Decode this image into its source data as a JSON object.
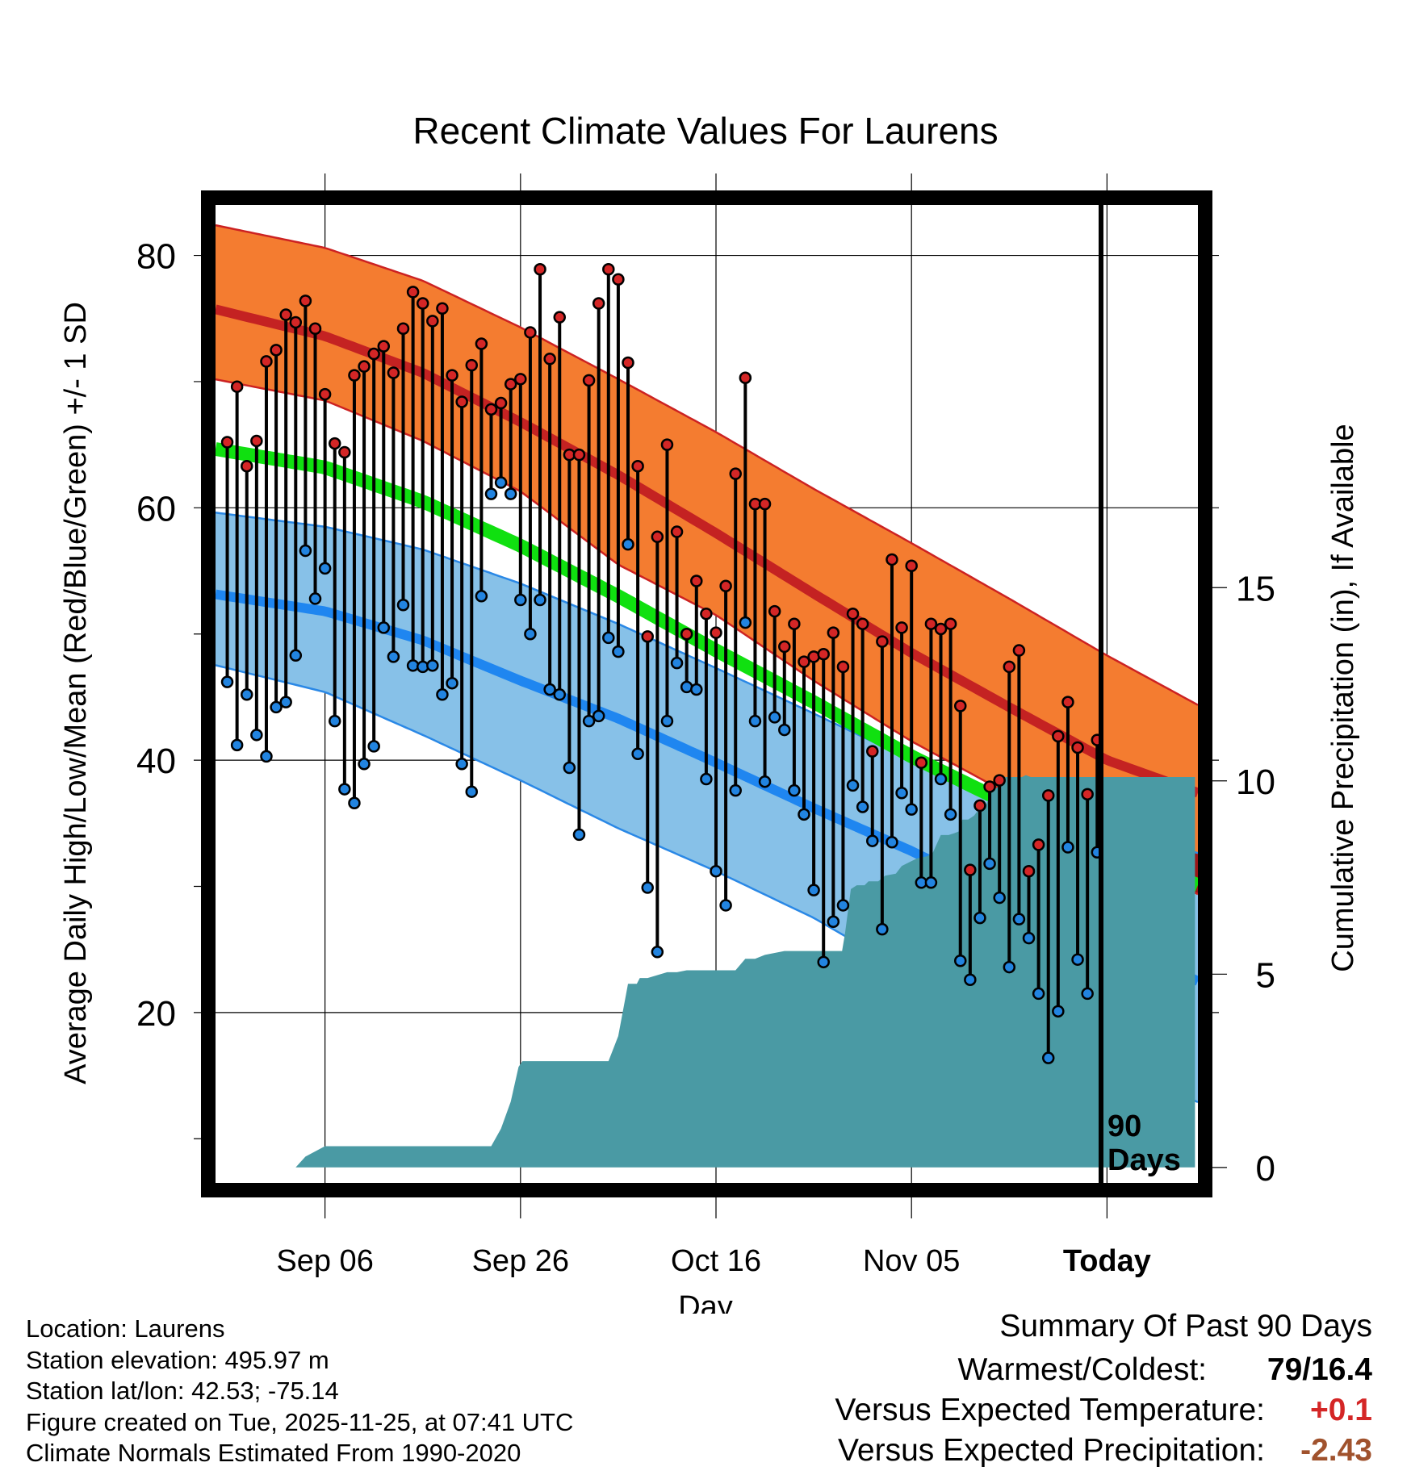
{
  "chart_data": {
    "type": "line",
    "title": "Recent Climate Values For Laurens",
    "xlabel": "Day",
    "ylabel": "Average Daily High/Low/Mean (Red/Blue/Green) +/- 1 SD",
    "y2label": "Cumulative Precipitation (in), If Available",
    "ylim": [
      6.5,
      84
    ],
    "y2lim": [
      -0.4,
      24.9
    ],
    "xlim": [
      -11.2,
      89.3
    ],
    "x_axis_note": "x = days since Sep 06",
    "yticks": [
      20,
      40,
      60,
      80
    ],
    "y2ticks": [
      0,
      5,
      10,
      15
    ],
    "xtick_labels": [
      {
        "label": "Sep 06",
        "x": 0
      },
      {
        "label": "Sep 26",
        "x": 20
      },
      {
        "label": "Oct 16",
        "x": 40
      },
      {
        "label": "Nov 05",
        "x": 60
      },
      {
        "label": "Today",
        "x": 80
      }
    ],
    "window_label": "90 Days",
    "normals": {
      "x": [
        -10,
        0,
        10,
        20,
        30,
        40,
        50,
        60,
        70,
        80,
        89
      ],
      "high_mean": [
        75.5,
        73.6,
        70.7,
        66.8,
        62.6,
        58.0,
        53.2,
        48.5,
        44.2,
        40.0,
        37.5
      ],
      "high_upper": [
        82.2,
        80.6,
        78.0,
        74.3,
        70.2,
        66.0,
        61.5,
        57.2,
        52.8,
        48.3,
        44.5
      ],
      "high_lower": [
        70.0,
        68.5,
        65.3,
        61.3,
        55.5,
        51.5,
        46.3,
        41.5,
        37.3,
        33.0,
        29.5
      ],
      "mean": [
        64.5,
        63.2,
        60.5,
        57.0,
        53.0,
        48.7,
        44.6,
        40.3,
        36.5,
        33.0,
        30.2
      ],
      "low_mean": [
        53.0,
        51.8,
        49.5,
        46.3,
        43.3,
        39.8,
        36.2,
        32.8,
        29.0,
        25.8,
        22.6
      ],
      "low_upper": [
        59.5,
        58.5,
        56.7,
        54.0,
        50.8,
        47.3,
        43.7,
        40.0,
        37.0,
        34.5,
        32.7
      ],
      "low_lower": [
        47.3,
        45.4,
        42.0,
        38.4,
        34.6,
        31.2,
        27.5,
        23.0,
        19.5,
        16.0,
        13.0
      ]
    },
    "observed": {
      "x": [
        -10,
        -9,
        -8,
        -7,
        -6,
        -5,
        -4,
        -3,
        -2,
        -1,
        0,
        1,
        2,
        3,
        4,
        5,
        6,
        7,
        8,
        9,
        10,
        11,
        12,
        13,
        14,
        15,
        16,
        17,
        18,
        19,
        20,
        21,
        22,
        23,
        24,
        25,
        26,
        27,
        28,
        29,
        30,
        31,
        32,
        33,
        34,
        35,
        36,
        37,
        38,
        39,
        40,
        41,
        42,
        43,
        44,
        45,
        46,
        47,
        48,
        49,
        50,
        51,
        52,
        53,
        54,
        55,
        56,
        57,
        58,
        59,
        60,
        61,
        62,
        63,
        64,
        65,
        66,
        67,
        68,
        69,
        70,
        71,
        72,
        73,
        74,
        75,
        76,
        77,
        78,
        79
      ],
      "high": [
        65.2,
        69.6,
        63.3,
        65.3,
        71.6,
        72.5,
        75.3,
        74.7,
        76.4,
        74.2,
        69.0,
        65.1,
        64.4,
        70.5,
        71.2,
        72.2,
        72.8,
        70.7,
        74.2,
        77.1,
        76.2,
        74.8,
        75.8,
        70.5,
        68.4,
        71.3,
        73.0,
        67.8,
        68.3,
        69.8,
        70.2,
        73.9,
        78.9,
        71.8,
        75.1,
        64.2,
        64.2,
        70.1,
        76.2,
        78.9,
        78.1,
        71.5,
        63.3,
        49.8,
        57.7,
        65.0,
        58.1,
        50.0,
        54.2,
        51.6,
        50.1,
        53.8,
        62.7,
        70.3,
        60.3,
        60.3,
        51.8,
        49.0,
        50.8,
        47.8,
        48.2,
        48.4,
        50.1,
        47.4,
        51.6,
        50.8,
        40.7,
        49.4,
        55.9,
        50.5,
        55.4,
        39.8,
        50.8,
        50.4,
        50.8,
        44.3,
        31.3,
        36.4,
        37.9,
        38.4,
        47.4,
        48.7,
        31.2,
        33.3,
        37.2,
        41.9,
        44.6,
        41.0,
        37.3,
        41.6
      ],
      "low": [
        46.2,
        41.2,
        45.2,
        42.0,
        40.3,
        44.2,
        44.6,
        48.3,
        56.6,
        52.8,
        55.2,
        43.1,
        37.7,
        36.6,
        39.7,
        41.1,
        50.5,
        48.2,
        52.3,
        47.5,
        47.4,
        47.5,
        45.2,
        46.1,
        39.7,
        37.5,
        53.0,
        61.1,
        62.0,
        61.1,
        52.7,
        50.0,
        52.7,
        45.6,
        45.2,
        39.4,
        34.1,
        43.1,
        43.5,
        49.7,
        48.6,
        57.1,
        40.5,
        29.9,
        24.8,
        43.1,
        47.7,
        45.8,
        45.6,
        38.5,
        31.2,
        28.5,
        37.6,
        50.9,
        43.1,
        38.3,
        43.4,
        42.4,
        37.6,
        35.7,
        29.7,
        24.0,
        27.2,
        28.5,
        38.0,
        36.3,
        33.6,
        26.6,
        33.5,
        37.4,
        36.1,
        30.3,
        30.3,
        38.5,
        35.7,
        24.1,
        22.6,
        27.5,
        31.8,
        29.1,
        23.6,
        27.4,
        25.9,
        21.5,
        16.4,
        20.1,
        33.1,
        24.2,
        21.5,
        32.7
      ]
    },
    "precipitation": {
      "x": [
        -10,
        -3,
        -2,
        0,
        10,
        15,
        16,
        17,
        18,
        19,
        19.8,
        20.2,
        21,
        29,
        30,
        31,
        31.9,
        32.2,
        33,
        35,
        36,
        37,
        38,
        39,
        40,
        41,
        42,
        43,
        44,
        45,
        46,
        47,
        48,
        50,
        51,
        52,
        52.9,
        53.2,
        53.8,
        54.4,
        55.2,
        55.6,
        56.6,
        57.3,
        58.4,
        59,
        59.8,
        60.6,
        61.6,
        62.2,
        63,
        63.8,
        64.4,
        64.9,
        65.2,
        65.8,
        66.4,
        66.7,
        67.4,
        68,
        68.3,
        68.6,
        69.1,
        69.6,
        70.4,
        70.9,
        71.3,
        71.7,
        72.2,
        89
      ],
      "cumulative": [
        0,
        0,
        0.28,
        0.55,
        0.55,
        0.55,
        0.55,
        0.55,
        1.0,
        1.7,
        2.6,
        2.75,
        2.75,
        2.75,
        3.4,
        4.75,
        4.75,
        4.9,
        4.9,
        5.05,
        5.05,
        5.1,
        5.1,
        5.1,
        5.1,
        5.1,
        5.1,
        5.4,
        5.4,
        5.5,
        5.55,
        5.6,
        5.6,
        5.6,
        5.6,
        5.6,
        5.6,
        6.05,
        7.2,
        7.3,
        7.3,
        7.4,
        7.4,
        7.55,
        7.6,
        7.8,
        7.9,
        8.0,
        8.05,
        8.15,
        8.6,
        8.6,
        8.65,
        8.7,
        9.0,
        9.0,
        9.1,
        9.2,
        9.25,
        9.6,
        9.75,
        9.8,
        9.9,
        10.1,
        10.1,
        10.1,
        10.1,
        10.15,
        10.1,
        10.1
      ]
    },
    "colors": {
      "high_band": "#f47c30",
      "high_edge": "#cc2222",
      "high_line": "#c42222",
      "mean_line": "#10e010",
      "low_band": "#87c1e8",
      "low_edge": "#2a88e6",
      "low_line": "#1f86f0",
      "overlap": "#9b1416",
      "precip_fill": "#4a9aa4",
      "high_marker": "#d42626",
      "low_marker": "#2284e0"
    }
  },
  "meta": {
    "location": "Location: Laurens",
    "elevation": "Station elevation: 495.97 m",
    "latlon": "Station lat/lon: 42.53; -75.14",
    "created": "Figure created on Tue, 2025-11-25, at 07:41 UTC",
    "normals": "Climate Normals Estimated From 1990-2020"
  },
  "summary": {
    "title": "Summary Of Past 90 Days",
    "warmest_label": "Warmest/Coldest:",
    "warmest_value": "79/16.4",
    "temp_label": "Versus Expected Temperature:",
    "temp_value": "+0.1",
    "temp_color": "#d42626",
    "precip_label": "Versus Expected Precipitation:",
    "precip_value": "-2.43",
    "precip_color": "#a0522d"
  }
}
